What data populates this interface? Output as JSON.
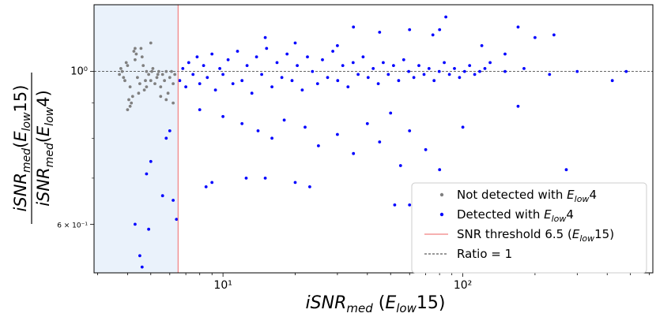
{
  "chart_data": {
    "type": "scatter",
    "xscale": "log",
    "yscale": "log",
    "xlim": [
      2.9,
      620
    ],
    "ylim": [
      0.51,
      1.25
    ],
    "xticks": [
      {
        "value": 10,
        "label": "10¹"
      },
      {
        "value": 100,
        "label": "10²"
      }
    ],
    "yticks": [
      {
        "value": 1.0,
        "label": "10⁰"
      },
      {
        "value": 0.6,
        "label": "6 × 10⁻¹"
      }
    ],
    "xlabel": "iSNR_med (E_low15)",
    "ylabel_numerator": "iSNR_med(E_low15)",
    "ylabel_denominator": "iSNR_med(E_low4)",
    "shaded_region": {
      "x_min": 2.9,
      "x_max": 6.5,
      "color": "#eaf2fb"
    },
    "threshold": {
      "x": 6.5,
      "color": "#f08080"
    },
    "reference_line": {
      "y": 1.0,
      "color": "#333333"
    },
    "grid": false,
    "legend_position": "lower-right",
    "legend": [
      {
        "label": "Not detected with E_low4",
        "marker": "dot",
        "color": "#808080"
      },
      {
        "label": "Detected with E_low4",
        "marker": "dot",
        "color": "#0000ff"
      },
      {
        "label": "SNR threshold 6.5 (E_low15)",
        "marker": "line",
        "color": "#f08080"
      },
      {
        "label": "Ratio = 1",
        "marker": "dashed",
        "color": "#333333"
      }
    ],
    "series": [
      {
        "name": "Not detected with E_low4",
        "color": "#808080",
        "points": [
          [
            3.7,
            0.99
          ],
          [
            3.8,
            1.0
          ],
          [
            3.9,
            0.97
          ],
          [
            4.0,
            1.02
          ],
          [
            4.1,
            0.95
          ],
          [
            4.2,
            0.92
          ],
          [
            4.3,
            1.04
          ],
          [
            4.4,
            0.98
          ],
          [
            4.5,
            0.96
          ],
          [
            4.6,
            1.05
          ],
          [
            4.7,
            0.94
          ],
          [
            4.8,
            1.0
          ],
          [
            4.9,
            0.99
          ],
          [
            5.0,
            0.97
          ],
          [
            5.1,
            1.01
          ],
          [
            5.2,
            0.96
          ],
          [
            5.3,
            0.98
          ],
          [
            5.4,
            1.0
          ],
          [
            5.5,
            0.95
          ],
          [
            5.6,
            0.99
          ],
          [
            5.7,
            0.97
          ],
          [
            5.8,
            1.0
          ],
          [
            5.9,
            0.93
          ],
          [
            6.0,
            0.98
          ],
          [
            6.1,
            1.0
          ],
          [
            6.2,
            0.96
          ],
          [
            6.3,
            0.99
          ],
          [
            4.25,
            1.07
          ],
          [
            4.15,
            0.9
          ],
          [
            4.05,
            0.91
          ],
          [
            4.35,
            1.06
          ],
          [
            4.55,
            1.08
          ],
          [
            3.75,
            1.01
          ],
          [
            3.85,
            0.98
          ],
          [
            3.95,
            1.03
          ],
          [
            4.45,
            0.93
          ],
          [
            4.65,
            1.02
          ],
          [
            4.75,
            0.97
          ],
          [
            5.05,
            1.0
          ],
          [
            5.35,
            0.99
          ],
          [
            4.0,
            0.88
          ],
          [
            4.1,
            0.89
          ],
          [
            5.5,
            0.92
          ],
          [
            5.8,
            0.91
          ],
          [
            6.2,
            0.9
          ],
          [
            4.3,
            1.08
          ],
          [
            5.0,
            1.1
          ],
          [
            4.8,
            0.95
          ]
        ]
      },
      {
        "name": "Detected with E_low4",
        "color": "#0000ff",
        "points": [
          [
            6.6,
            0.97
          ],
          [
            6.8,
            1.01
          ],
          [
            7.0,
            0.95
          ],
          [
            7.2,
            1.03
          ],
          [
            7.5,
            0.99
          ],
          [
            7.8,
            1.05
          ],
          [
            8.0,
            0.96
          ],
          [
            8.3,
            1.02
          ],
          [
            8.6,
            0.98
          ],
          [
            9.0,
            1.06
          ],
          [
            9.3,
            0.94
          ],
          [
            9.7,
            1.01
          ],
          [
            10.0,
            0.99
          ],
          [
            10.5,
            1.04
          ],
          [
            11.0,
            0.96
          ],
          [
            11.5,
            1.07
          ],
          [
            12.0,
            0.97
          ],
          [
            12.6,
            1.02
          ],
          [
            13.2,
            0.93
          ],
          [
            13.8,
            1.05
          ],
          [
            14.5,
            0.99
          ],
          [
            15.2,
            1.08
          ],
          [
            16.0,
            0.95
          ],
          [
            16.8,
            1.03
          ],
          [
            17.6,
            0.98
          ],
          [
            18.5,
            1.06
          ],
          [
            19.4,
            0.97
          ],
          [
            20.4,
            1.02
          ],
          [
            21.4,
            0.94
          ],
          [
            22.5,
            1.05
          ],
          [
            23.6,
            1.0
          ],
          [
            24.8,
            0.96
          ],
          [
            26.0,
            1.04
          ],
          [
            27.3,
            0.98
          ],
          [
            28.7,
            1.07
          ],
          [
            30.1,
            0.97
          ],
          [
            31.6,
            1.02
          ],
          [
            33.2,
            0.95
          ],
          [
            34.9,
            1.03
          ],
          [
            36.6,
            0.99
          ],
          [
            38.4,
            1.05
          ],
          [
            40.3,
            0.98
          ],
          [
            42.3,
            1.01
          ],
          [
            44.4,
            0.96
          ],
          [
            46.6,
            1.03
          ],
          [
            48.9,
            0.99
          ],
          [
            51.4,
            1.02
          ],
          [
            54.0,
            0.97
          ],
          [
            56.7,
            1.04
          ],
          [
            59.5,
            1.0
          ],
          [
            62.5,
            0.98
          ],
          [
            65.6,
            1.02
          ],
          [
            68.9,
            0.99
          ],
          [
            72.3,
            1.01
          ],
          [
            75.9,
            0.97
          ],
          [
            79.7,
            1.0
          ],
          [
            83.7,
            1.03
          ],
          [
            87.9,
            0.99
          ],
          [
            92.3,
            1.01
          ],
          [
            96.9,
            0.98
          ],
          [
            101.7,
            1.0
          ],
          [
            106.8,
            1.02
          ],
          [
            112.1,
            0.99
          ],
          [
            117.7,
            1.0
          ],
          [
            123.6,
            1.01
          ],
          [
            150.0,
            1.0
          ],
          [
            180.0,
            1.01
          ],
          [
            230.0,
            0.99
          ],
          [
            300.0,
            1.0
          ],
          [
            420.0,
            0.97
          ],
          [
            480.0,
            1.0
          ],
          [
            15.0,
            1.12
          ],
          [
            20.0,
            1.1
          ],
          [
            30.0,
            1.09
          ],
          [
            35.0,
            1.16
          ],
          [
            45.0,
            1.14
          ],
          [
            60.0,
            1.15
          ],
          [
            75.0,
            1.13
          ],
          [
            80.0,
            1.15
          ],
          [
            85.0,
            1.2
          ],
          [
            120.0,
            1.09
          ],
          [
            170.0,
            1.16
          ],
          [
            200.0,
            1.12
          ],
          [
            240.0,
            1.13
          ],
          [
            150.0,
            1.06
          ],
          [
            130.0,
            1.03
          ],
          [
            8.0,
            0.88
          ],
          [
            10.0,
            0.86
          ],
          [
            12.0,
            0.84
          ],
          [
            14.0,
            0.82
          ],
          [
            16.0,
            0.8
          ],
          [
            18.0,
            0.85
          ],
          [
            22.0,
            0.83
          ],
          [
            25.0,
            0.78
          ],
          [
            30.0,
            0.81
          ],
          [
            35.0,
            0.76
          ],
          [
            40.0,
            0.84
          ],
          [
            45.0,
            0.79
          ],
          [
            50.0,
            0.87
          ],
          [
            55.0,
            0.73
          ],
          [
            60.0,
            0.82
          ],
          [
            70.0,
            0.77
          ],
          [
            80.0,
            0.72
          ],
          [
            100.0,
            0.83
          ],
          [
            170.0,
            0.89
          ],
          [
            270.0,
            0.72
          ],
          [
            8.5,
            0.68
          ],
          [
            9.0,
            0.69
          ],
          [
            12.5,
            0.7
          ],
          [
            15.0,
            0.7
          ],
          [
            20.0,
            0.69
          ],
          [
            23.0,
            0.68
          ],
          [
            6.2,
            0.65
          ],
          [
            5.6,
            0.66
          ],
          [
            5.0,
            0.74
          ],
          [
            4.8,
            0.71
          ],
          [
            5.8,
            0.8
          ],
          [
            6.0,
            0.82
          ],
          [
            4.3,
            0.6
          ],
          [
            4.6,
            0.52
          ],
          [
            4.5,
            0.54
          ],
          [
            4.9,
            0.59
          ],
          [
            6.4,
            0.61
          ],
          [
            52.0,
            0.64
          ],
          [
            60.0,
            0.64
          ]
        ]
      }
    ]
  }
}
